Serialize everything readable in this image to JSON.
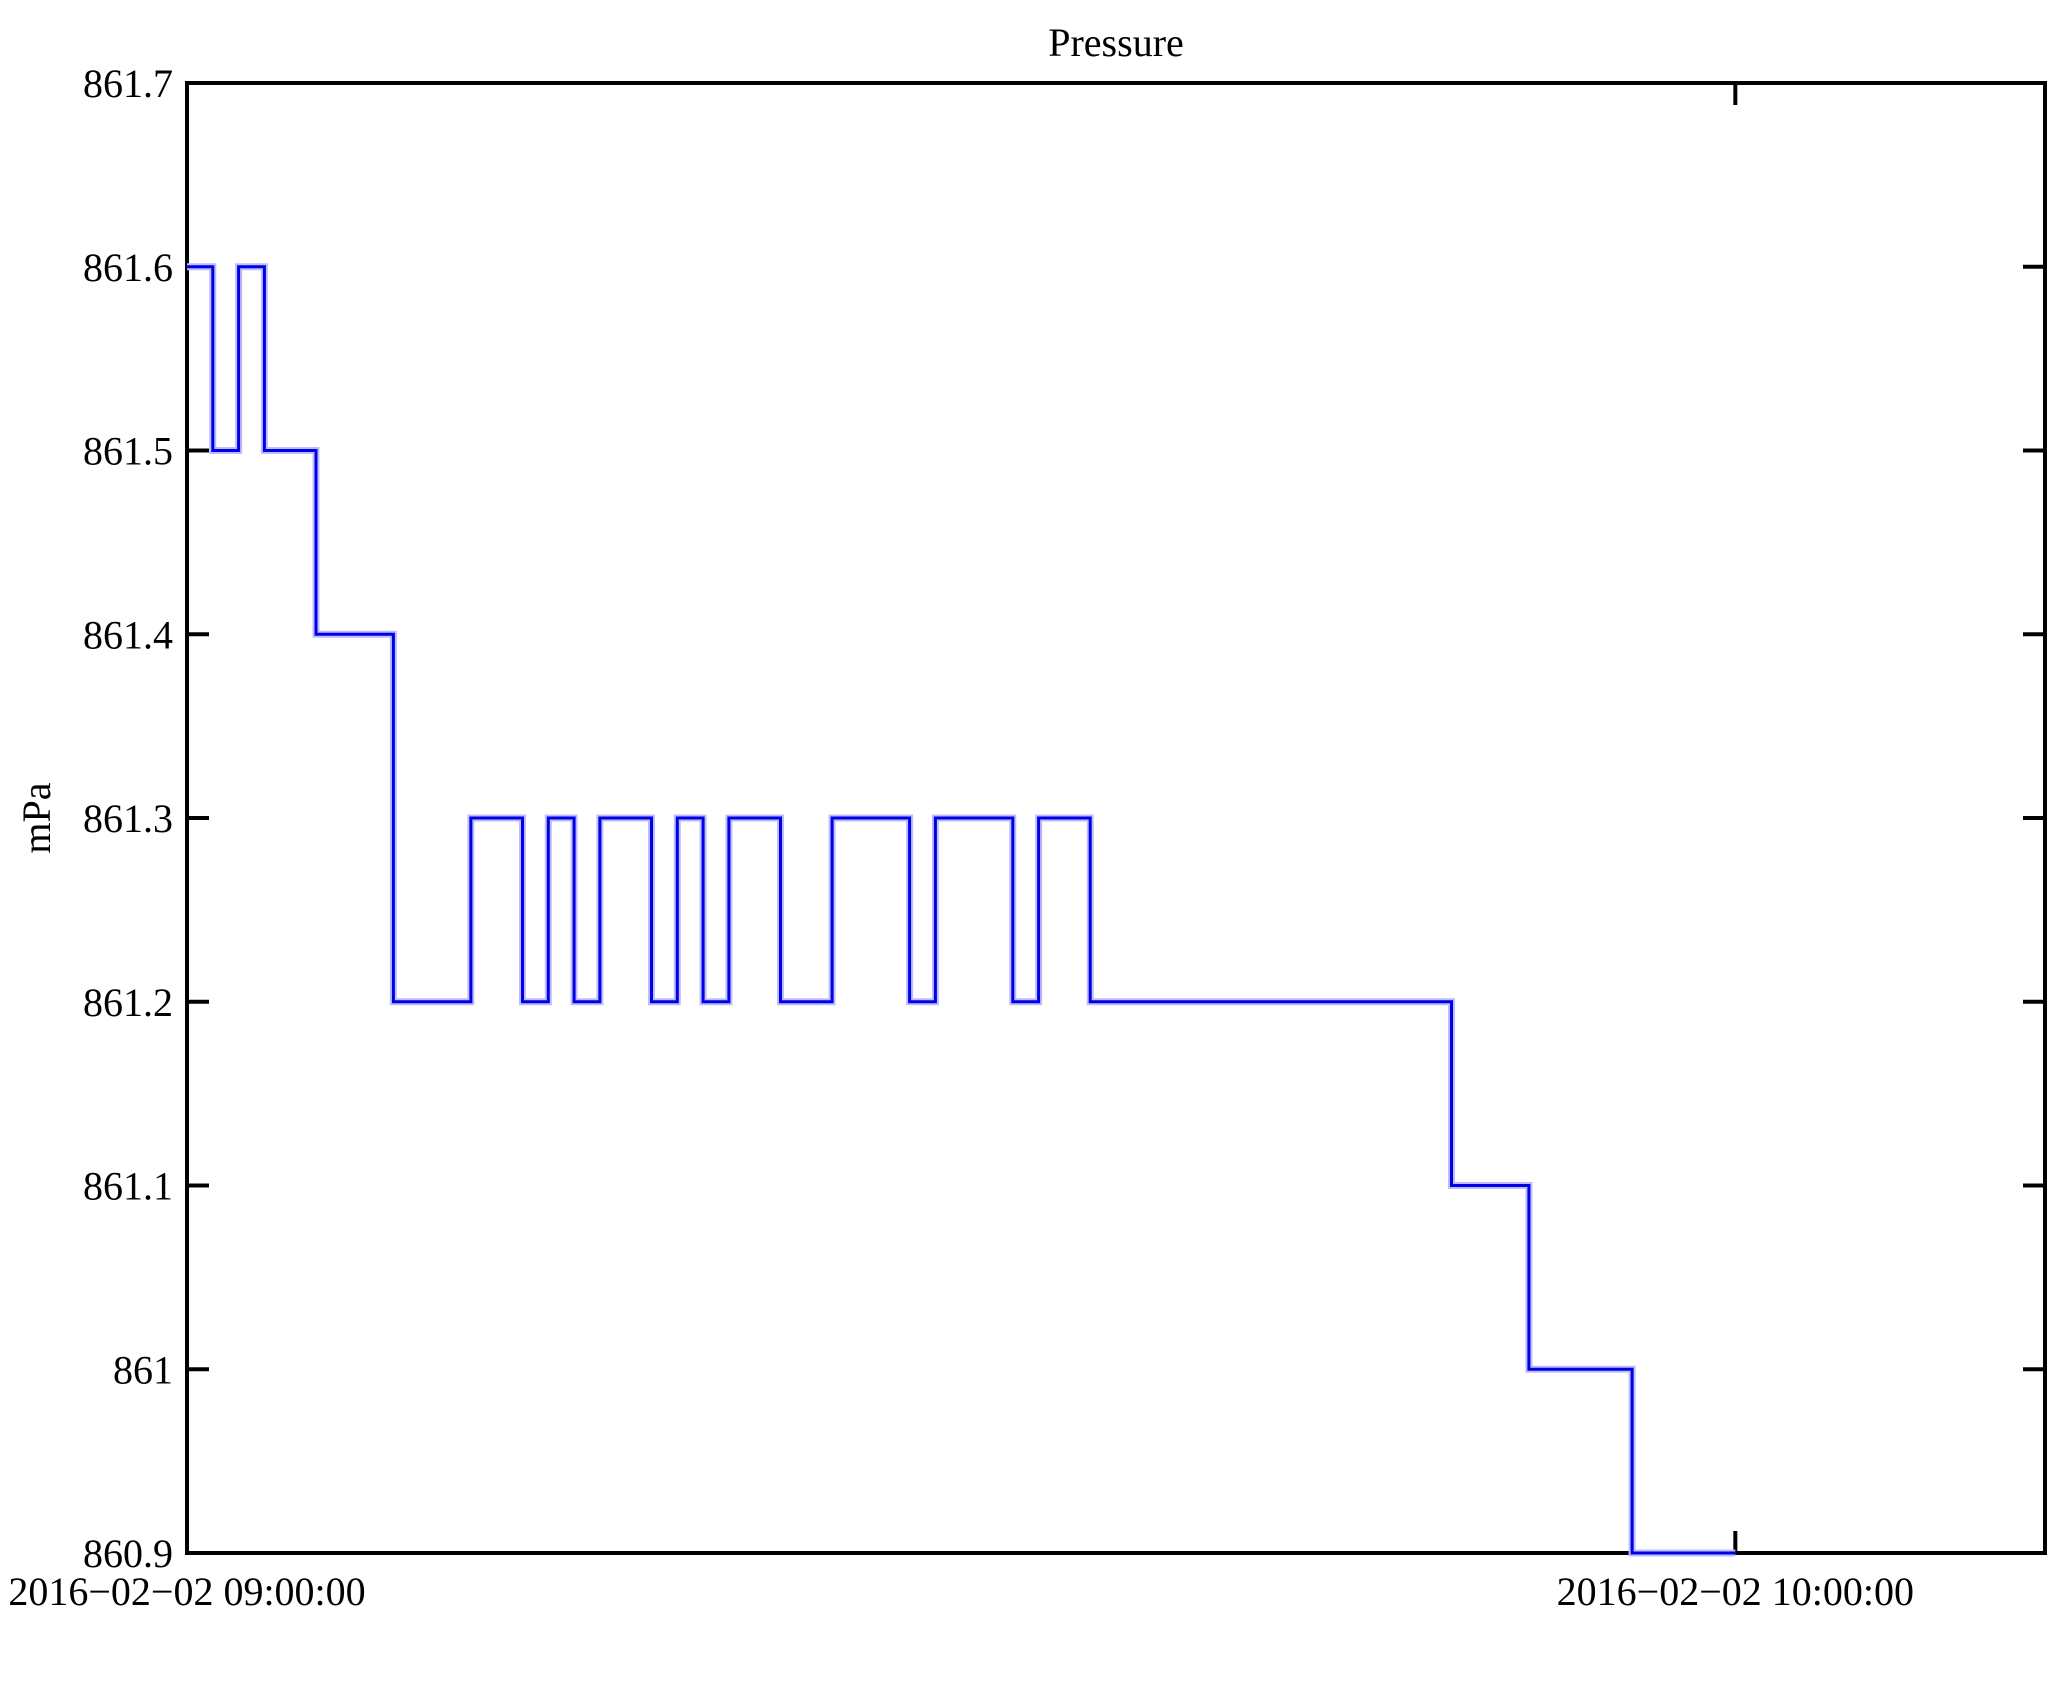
{
  "chart_data": {
    "type": "line",
    "step_mode": "post",
    "title": "Pressure",
    "ylabel": "mPa",
    "xlabel": "",
    "series_name": "Pressure",
    "x_start_label": "2016−02−02 09:00:00",
    "x_end_label": "2016−02−02 10:00:00",
    "x_minutes": [
      0,
      1,
      2,
      3,
      5,
      8,
      11,
      13,
      14,
      15,
      16,
      18,
      19,
      20,
      21,
      23,
      25,
      28,
      29,
      32,
      33,
      35,
      49,
      52,
      56,
      60
    ],
    "values_mPa": [
      861.6,
      861.5,
      861.6,
      861.5,
      861.4,
      861.2,
      861.3,
      861.2,
      861.3,
      861.2,
      861.3,
      861.2,
      861.3,
      861.2,
      861.3,
      861.2,
      861.3,
      861.2,
      861.3,
      861.2,
      861.3,
      861.2,
      861.1,
      861.0,
      860.9,
      860.9
    ],
    "ylim": [
      860.9,
      861.7
    ],
    "xlim_minutes": [
      0,
      72
    ],
    "yticks": [
      {
        "value": 861.7,
        "label": "861.7"
      },
      {
        "value": 861.6,
        "label": "861.6"
      },
      {
        "value": 861.5,
        "label": "861.5"
      },
      {
        "value": 861.4,
        "label": "861.4"
      },
      {
        "value": 861.3,
        "label": "861.3"
      },
      {
        "value": 861.2,
        "label": "861.2"
      },
      {
        "value": 861.1,
        "label": "861.1"
      },
      {
        "value": 861.0,
        "label": "861"
      },
      {
        "value": 860.9,
        "label": "860.9"
      }
    ],
    "xticks": [
      {
        "minute": 0,
        "label": "2016−02−02 09:00:00"
      },
      {
        "minute": 60,
        "label": "2016−02−02 10:00:00"
      }
    ],
    "grid": false,
    "legend": false,
    "line_color": "#0101e6",
    "line_halo_color": "#bdbdfc",
    "axis_color": "#000000",
    "background": "#ffffff"
  }
}
